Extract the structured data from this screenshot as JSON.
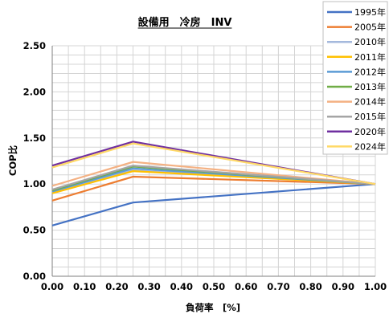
{
  "chart_data": {
    "type": "line",
    "title": "設備用　冷房　INV",
    "xlabel": "負荷率　[%]",
    "ylabel": "COP比",
    "xlim": [
      0,
      1
    ],
    "ylim": [
      0,
      2.5
    ],
    "x_ticks": [
      "0.00",
      "0.10",
      "0.20",
      "0.30",
      "0.40",
      "0.50",
      "0.60",
      "0.70",
      "0.80",
      "0.90",
      "1.00"
    ],
    "y_ticks": [
      "0.00",
      "0.50",
      "1.00",
      "1.50",
      "2.00",
      "2.50"
    ],
    "grid": true,
    "legend_position": "top-right",
    "x": [
      0,
      0.25,
      1.0
    ],
    "series": [
      {
        "name": "1995年",
        "color": "#4472c4",
        "values": [
          0.55,
          0.8,
          1.0
        ]
      },
      {
        "name": "2005年",
        "color": "#ed7d31",
        "values": [
          0.82,
          1.08,
          1.0
        ]
      },
      {
        "name": "2010年",
        "color": "#a5b9dd",
        "values": [
          0.91,
          1.15,
          1.0
        ]
      },
      {
        "name": "2011年",
        "color": "#ffc000",
        "values": [
          0.9,
          1.14,
          1.0
        ]
      },
      {
        "name": "2012年",
        "color": "#5b9bd5",
        "values": [
          0.92,
          1.17,
          1.0
        ]
      },
      {
        "name": "2013年",
        "color": "#70ad47",
        "values": [
          0.93,
          1.19,
          1.0
        ]
      },
      {
        "name": "2014年",
        "color": "#f4b183",
        "values": [
          0.98,
          1.24,
          1.0
        ]
      },
      {
        "name": "2015年",
        "color": "#a5a5a5",
        "values": [
          0.94,
          1.2,
          1.0
        ]
      },
      {
        "name": "2020年",
        "color": "#7030a0",
        "values": [
          1.2,
          1.46,
          1.0
        ]
      },
      {
        "name": "2024年",
        "color": "#ffd966",
        "values": [
          1.18,
          1.44,
          1.0
        ]
      }
    ]
  }
}
